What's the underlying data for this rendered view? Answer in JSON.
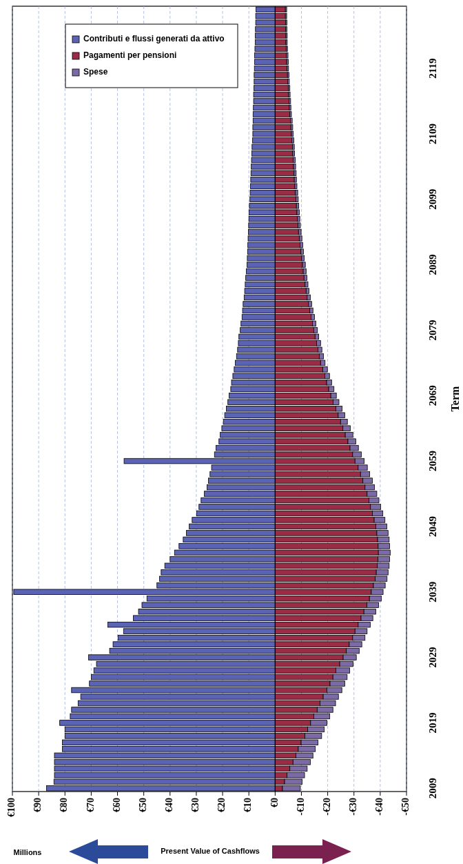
{
  "chart_data": {
    "type": "bar",
    "stacked": true,
    "orientation": "horizontal",
    "xlabel": "Present Value of Cashflows",
    "ylabel": "Term",
    "annotations": [
      "Millions"
    ],
    "categories": [
      null,
      null,
      null,
      null,
      null,
      null,
      null,
      null,
      null,
      "2119",
      null,
      null,
      null,
      null,
      null,
      null,
      null,
      null,
      null,
      "2109",
      null,
      null,
      null,
      null,
      null,
      null,
      null,
      null,
      null,
      "2099",
      null,
      null,
      null,
      null,
      null,
      null,
      null,
      null,
      null,
      "2089",
      null,
      null,
      null,
      null,
      null,
      null,
      null,
      null,
      null,
      "2079",
      null,
      null,
      null,
      null,
      null,
      null,
      null,
      null,
      null,
      "2069",
      null,
      null,
      null,
      null,
      null,
      null,
      null,
      null,
      null,
      "2059",
      null,
      null,
      null,
      null,
      null,
      null,
      null,
      null,
      null,
      "2049",
      null,
      null,
      null,
      null,
      null,
      null,
      null,
      null,
      null,
      "2039",
      null,
      null,
      null,
      null,
      null,
      null,
      null,
      null,
      null,
      "2029",
      null,
      null,
      null,
      null,
      null,
      null,
      null,
      null,
      null,
      "2019",
      null,
      null,
      null,
      null,
      null,
      null,
      null,
      null,
      null,
      "2009"
    ],
    "series": [
      {
        "name": "Contributi e flussi generati da attivo",
        "color": "#5b63b5",
        "values": [
          7.3,
          7.4,
          7.4,
          7.5,
          7.6,
          7.6,
          7.7,
          7.8,
          7.8,
          7.9,
          8,
          8,
          8.1,
          8.2,
          8.2,
          8.3,
          8.4,
          8.4,
          8.5,
          8.5,
          8.6,
          8.8,
          8.9,
          9,
          9.1,
          9.2,
          9.3,
          9.4,
          9.5,
          9.6,
          9.8,
          9.9,
          10,
          10.1,
          10.2,
          10.3,
          10.4,
          10.5,
          10.6,
          10.7,
          11,
          11.2,
          11.4,
          11.6,
          11.8,
          12.2,
          12.4,
          12.6,
          13,
          13.3,
          13.8,
          14,
          14.3,
          14.7,
          15.2,
          15.6,
          16.1,
          16.6,
          16.9,
          17.5,
          18,
          18.6,
          19.2,
          19.7,
          20.3,
          20.9,
          21.4,
          22.5,
          23.1,
          57.5,
          24.2,
          24.8,
          25.4,
          25.9,
          27,
          28.2,
          29,
          29.9,
          31.6,
          32.7,
          33.8,
          35,
          36.6,
          38.3,
          40,
          42,
          43.4,
          44,
          45,
          99.5,
          48.8,
          50.7,
          52,
          54,
          63.7,
          57.7,
          59.8,
          61.7,
          63,
          71,
          68,
          69,
          70,
          70.7,
          77.5,
          74,
          75,
          77.5,
          78,
          82,
          80,
          80,
          81,
          81,
          84,
          84,
          84,
          84,
          84.2,
          87
        ]
      },
      {
        "name": "Pagamenti per pensioni",
        "color": "#9a2c45",
        "values": [
          -3.9,
          -3.9,
          -4,
          -4,
          -4.1,
          -4.1,
          -4.2,
          -4.3,
          -4.4,
          -4.5,
          -4.7,
          -4.8,
          -5,
          -5.1,
          -5.3,
          -5.4,
          -5.6,
          -5.8,
          -6,
          -6.2,
          -6.4,
          -6.6,
          -6.7,
          -6.9,
          -7,
          -7.2,
          -7.3,
          -7.5,
          -7.7,
          -7.9,
          -8.1,
          -8.3,
          -8.5,
          -8.7,
          -8.9,
          -9.2,
          -9.5,
          -9.8,
          -10.1,
          -10.4,
          -10.7,
          -11,
          -11.4,
          -11.8,
          -12.2,
          -12.7,
          -13.2,
          -13.7,
          -14.2,
          -14.7,
          -15.2,
          -15.8,
          -16.3,
          -16.8,
          -17.3,
          -18.1,
          -18.9,
          -19.6,
          -20.4,
          -21.2,
          -22.1,
          -23.1,
          -24,
          -24.9,
          -25.8,
          -26.7,
          -27.7,
          -28.5,
          -29.5,
          -30.4,
          -31.6,
          -32.5,
          -33.4,
          -34.2,
          -35,
          -35.7,
          -36.3,
          -37,
          -37.7,
          -38.3,
          -38.7,
          -39,
          -39.2,
          -39.3,
          -39.1,
          -38.9,
          -38.5,
          -38.1,
          -37.4,
          -36.6,
          -35.9,
          -34.9,
          -33.8,
          -32.7,
          -31.6,
          -30.4,
          -29.5,
          -28.2,
          -27.1,
          -25.9,
          -24.6,
          -23.1,
          -22,
          -20.9,
          -19.7,
          -18.3,
          -17.1,
          -16,
          -14.7,
          -13.5,
          -12.4,
          -11.3,
          -9.9,
          -8.8,
          -7.9,
          -6.8,
          -5.6,
          -4.5,
          -3.6,
          -2.8
        ]
      },
      {
        "name": "Spese",
        "color": "#7b6aa6",
        "values": [
          -0.5,
          -0.5,
          -0.5,
          -0.5,
          -0.5,
          -0.5,
          -0.5,
          -0.6,
          -0.6,
          -0.6,
          -0.6,
          -0.6,
          -0.6,
          -0.6,
          -0.6,
          -0.6,
          -0.6,
          -0.7,
          -0.7,
          -0.7,
          -0.7,
          -0.7,
          -0.7,
          -0.8,
          -0.8,
          -0.8,
          -0.8,
          -0.8,
          -0.9,
          -0.9,
          -0.9,
          -0.9,
          -0.9,
          -0.9,
          -1,
          -1,
          -1,
          -1,
          -1,
          -1.1,
          -1.1,
          -1.1,
          -1.1,
          -1.1,
          -1.2,
          -1.2,
          -1.2,
          -1.3,
          -1.3,
          -1.4,
          -1.4,
          -1.5,
          -1.5,
          -1.6,
          -1.7,
          -1.8,
          -1.8,
          -1.9,
          -2,
          -2.1,
          -2.2,
          -2.4,
          -2.5,
          -2.6,
          -2.8,
          -2.9,
          -3,
          -3.2,
          -3.3,
          -3.5,
          -3.5,
          -3.5,
          -3.6,
          -3.6,
          -3.7,
          -3.8,
          -3.9,
          -4,
          -4.1,
          -4.2,
          -4.3,
          -4.4,
          -4.4,
          -4.5,
          -4.5,
          -4.5,
          -4.5,
          -4.5,
          -4.5,
          -4.5,
          -4.5,
          -4.5,
          -4.5,
          -4.5,
          -4.6,
          -4.6,
          -4.7,
          -4.8,
          -4.9,
          -5,
          -5.1,
          -5.3,
          -5.4,
          -5.6,
          -5.7,
          -5.8,
          -5.9,
          -6,
          -6.1,
          -6.2,
          -6.3,
          -6.4,
          -6.4,
          -6.5,
          -6.5,
          -6.6,
          -6.6,
          -6.7,
          -6.7,
          -6.8
        ]
      }
    ],
    "xlim": [
      100,
      -50
    ],
    "xticks": [
      {
        "value": 100,
        "label": "€100"
      },
      {
        "value": 90,
        "label": "€90"
      },
      {
        "value": 80,
        "label": "€80"
      },
      {
        "value": 70,
        "label": "€70"
      },
      {
        "value": 60,
        "label": "€60"
      },
      {
        "value": 50,
        "label": "€50"
      },
      {
        "value": 40,
        "label": "€40"
      },
      {
        "value": 30,
        "label": "€30"
      },
      {
        "value": 20,
        "label": "€20"
      },
      {
        "value": 10,
        "label": "€10"
      },
      {
        "value": 0,
        "label": "€0"
      },
      {
        "value": -10,
        "label": "-€10"
      },
      {
        "value": -20,
        "label": "-€20"
      },
      {
        "value": -30,
        "label": "-€30"
      },
      {
        "value": -40,
        "label": "-€40"
      },
      {
        "value": -50,
        "label": "-€50"
      }
    ],
    "grid": "x",
    "legend": "top left"
  }
}
